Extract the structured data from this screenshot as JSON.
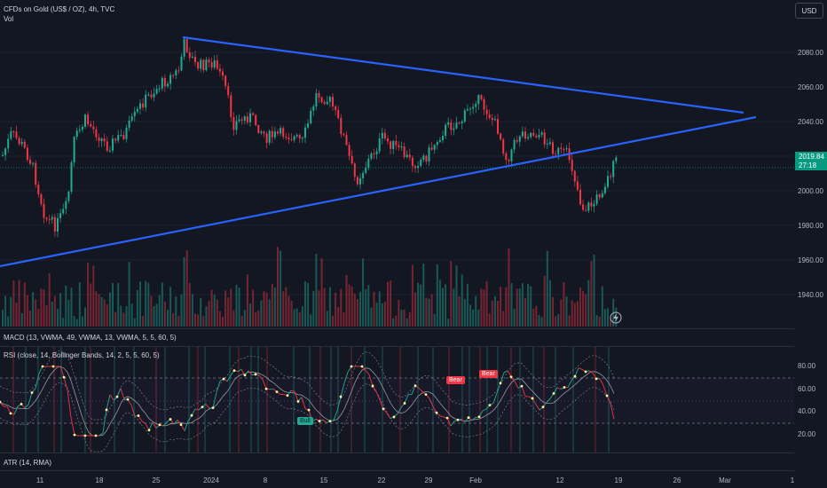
{
  "header": {
    "symbol_title": "CFDs on Gold (US$ / OZ), 4h, TVC",
    "vol_label": "Vol",
    "currency_button": "USD"
  },
  "price": {
    "current": "2019.84",
    "countdown": "27:18",
    "axis_labels": [
      "2080.00",
      "2060.00",
      "2040.00",
      "2020.00",
      "2000.00",
      "1980.00",
      "1960.00",
      "1940.00"
    ]
  },
  "indicators": {
    "macd": "MACD (13, VWMA, 49, VWMA, 13, VWMA, 5, 5, 60, 5)",
    "rsi": "RSI (close, 14, Bollinger Bands, 14, 2, 5, 5, 60, 5)",
    "atr": "ATR (14, RMA)",
    "rsi_axis": [
      "80.00",
      "60.00",
      "40.00",
      "20.00"
    ],
    "badges": [
      "Bear",
      "Bear",
      "Bull"
    ]
  },
  "time_axis": [
    "11",
    "18",
    "25",
    "2024",
    "8",
    "15",
    "22",
    "29",
    "Feb",
    "12",
    "19",
    "26",
    "Mar",
    "1"
  ],
  "colors": {
    "background": "#131722",
    "up": "#22ab94",
    "down": "#f23645",
    "trendline": "#2962ff",
    "price_tag": "#089981"
  }
}
